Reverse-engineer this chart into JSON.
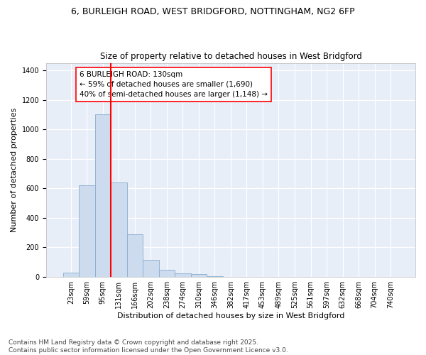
{
  "title_line1": "6, BURLEIGH ROAD, WEST BRIDGFORD, NOTTINGHAM, NG2 6FP",
  "title_line2": "Size of property relative to detached houses in West Bridgford",
  "xlabel": "Distribution of detached houses by size in West Bridgford",
  "ylabel": "Number of detached properties",
  "bar_color": "#ccdcee",
  "bar_edge_color": "#8aadcc",
  "background_color": "#e8eef8",
  "grid_color": "white",
  "categories": [
    "23sqm",
    "59sqm",
    "95sqm",
    "131sqm",
    "166sqm",
    "202sqm",
    "238sqm",
    "274sqm",
    "310sqm",
    "346sqm",
    "382sqm",
    "417sqm",
    "453sqm",
    "489sqm",
    "525sqm",
    "561sqm",
    "597sqm",
    "632sqm",
    "668sqm",
    "704sqm",
    "740sqm"
  ],
  "values": [
    30,
    620,
    1100,
    640,
    290,
    115,
    50,
    25,
    20,
    5,
    0,
    0,
    0,
    0,
    0,
    0,
    0,
    0,
    0,
    0,
    0
  ],
  "vline_color": "red",
  "vline_pos": 2.5,
  "annotation_text": "6 BURLEIGH ROAD: 130sqm\n← 59% of detached houses are smaller (1,690)\n40% of semi-detached houses are larger (1,148) →",
  "ylim": [
    0,
    1450
  ],
  "yticks": [
    0,
    200,
    400,
    600,
    800,
    1000,
    1200,
    1400
  ],
  "footnote": "Contains HM Land Registry data © Crown copyright and database right 2025.\nContains public sector information licensed under the Open Government Licence v3.0.",
  "footnote_fontsize": 6.5,
  "title_fontsize1": 9,
  "title_fontsize2": 8.5,
  "xlabel_fontsize": 8,
  "ylabel_fontsize": 8,
  "tick_fontsize": 7,
  "annotation_fontsize": 7.5
}
